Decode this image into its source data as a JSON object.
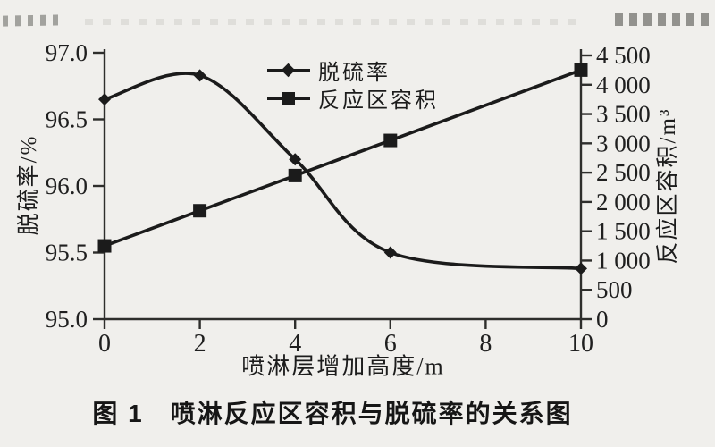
{
  "figure": {
    "caption": "图 1　喷淋反应区容积与脱硫率的关系图"
  },
  "chart_data": {
    "type": "line",
    "x": [
      0,
      2,
      4,
      6,
      10
    ],
    "series": [
      {
        "name": "脱硫率",
        "axis": "left",
        "marker": "diamond",
        "smooth": true,
        "values": [
          96.65,
          96.83,
          96.2,
          95.5,
          95.38
        ]
      },
      {
        "name": "反应区容积",
        "axis": "right",
        "marker": "square",
        "smooth": false,
        "values": [
          1250,
          1850,
          2450,
          3050,
          4250
        ]
      }
    ],
    "xlabel": "喷淋层增加高度/m",
    "ylabel_left": "脱硫率/%",
    "ylabel_right": "反应区容积/m³",
    "x_ticks": [
      "0",
      "2",
      "4",
      "6",
      "8",
      "10"
    ],
    "x_range": [
      0,
      10
    ],
    "y_left_ticks": [
      "95.0",
      "95.5",
      "96.0",
      "96.5",
      "97.0"
    ],
    "y_left_range": [
      95.0,
      97.0
    ],
    "y_right_ticks": [
      "0",
      "500",
      "1 000",
      "1 500",
      "2 000",
      "2 500",
      "3 000",
      "3 500",
      "4 000",
      "4 500"
    ],
    "y_right_range": [
      0,
      4500
    ],
    "legend_position": "inside-top",
    "grid": false,
    "line_color": "#1b1b1b",
    "axis_color": "#2e2e2c",
    "tick_label_color": "#1f1f1f"
  }
}
